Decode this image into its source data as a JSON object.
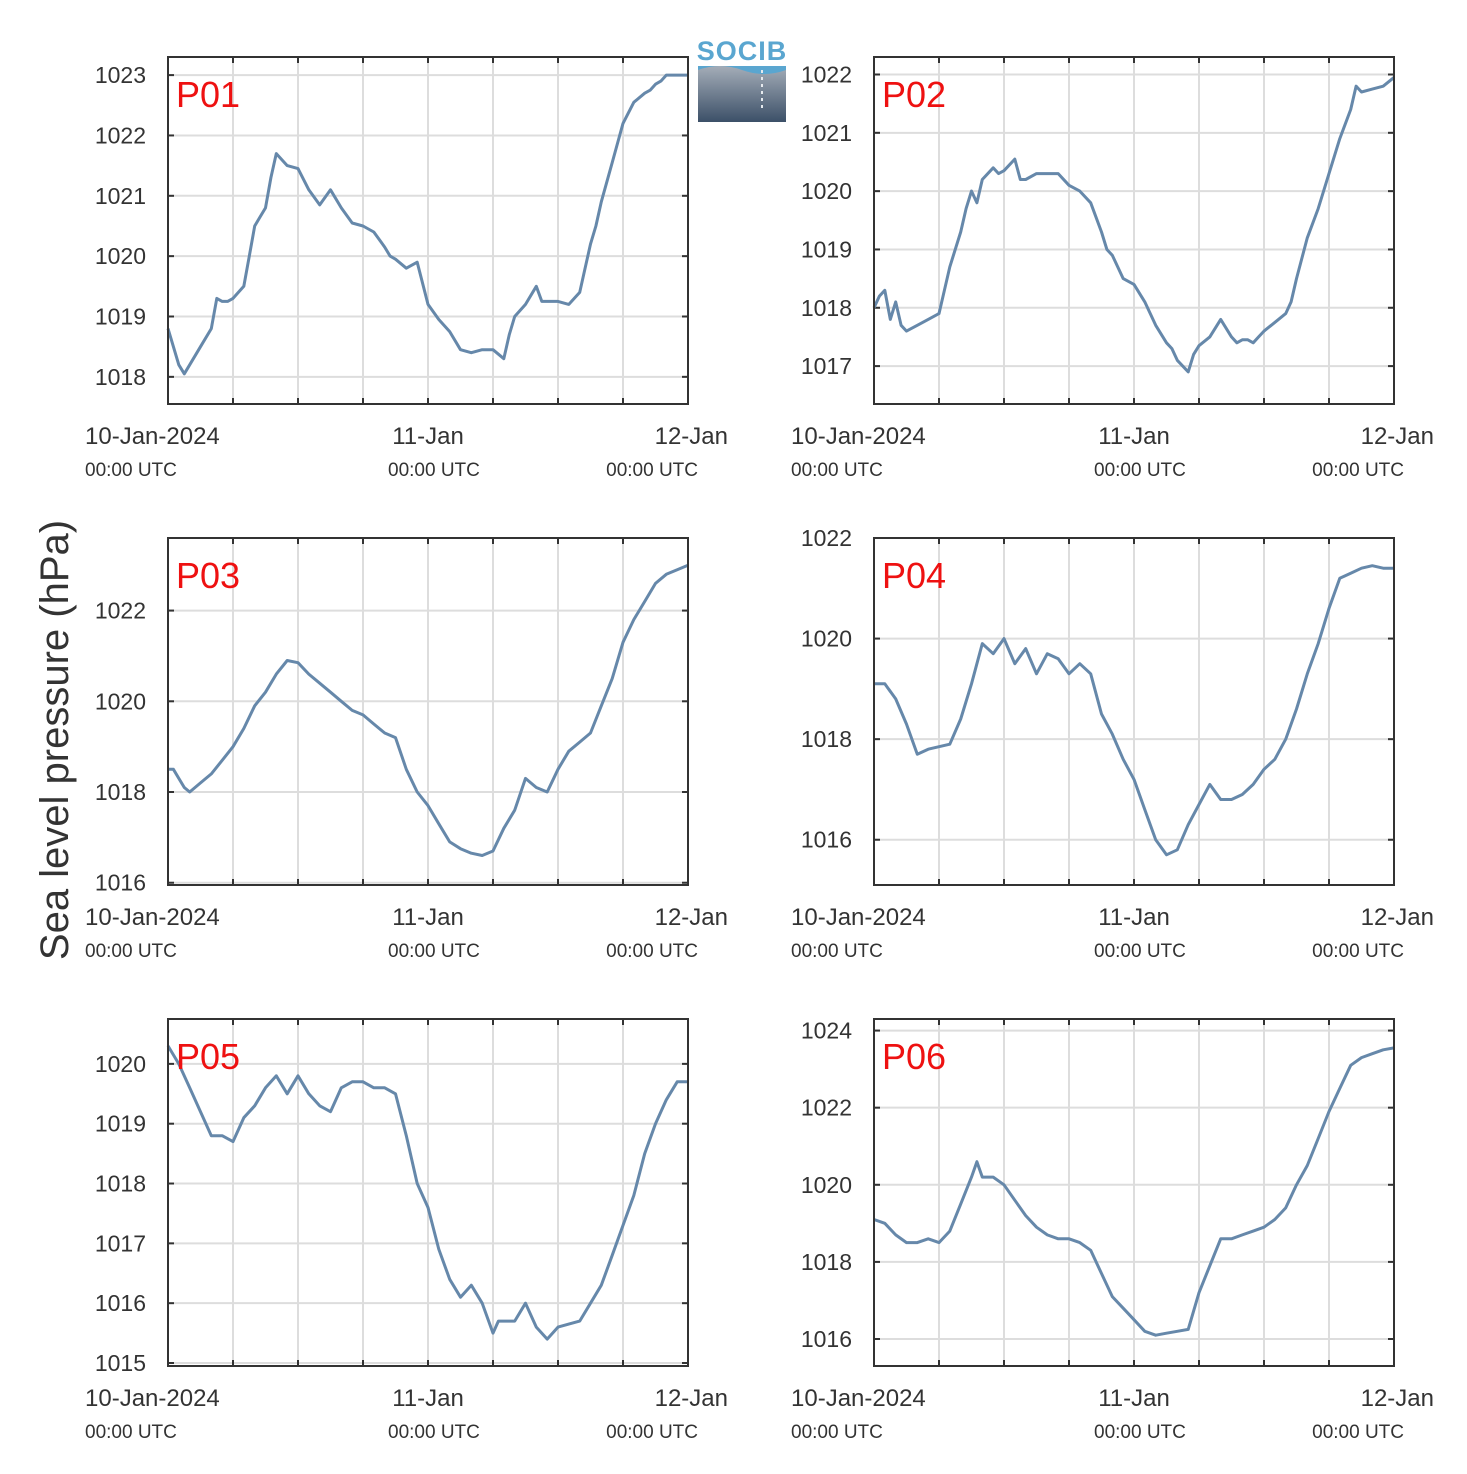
{
  "figure": {
    "ylabel": "Sea level pressure (hPa)",
    "logo_text": "SOCIB"
  },
  "colors": {
    "line": "#6688aa",
    "panel_label": "#ee1111",
    "grid": "#dddddd",
    "axis": "#333333",
    "text": "#333333"
  },
  "chart_data": [
    {
      "type": "line",
      "title": "P01",
      "x_unit": "hours since 10-Jan-2024 00:00 UTC",
      "x_ticks": [
        0,
        24,
        48
      ],
      "x_tick_labels": [
        [
          "10-Jan-2024",
          "00:00 UTC"
        ],
        [
          "11-Jan",
          "00:00 UTC"
        ],
        [
          "12-Jan",
          "00:00 UTC"
        ]
      ],
      "xlim": [
        0,
        48
      ],
      "ylim": [
        1017.55,
        1023.3
      ],
      "y_ticks": [
        1018,
        1019,
        1020,
        1021,
        1022,
        1023
      ],
      "y_tick_labels": [
        "1018",
        "1019",
        "1020",
        "1021",
        "1022",
        "1023"
      ],
      "grid": true,
      "series": [
        {
          "x": [
            0,
            0.5,
            1,
            1.5,
            2,
            3,
            4,
            4.5,
            5,
            5.5,
            6,
            7,
            7.5,
            8,
            8.5,
            9,
            9.5,
            10,
            11,
            12,
            13,
            14,
            15,
            16,
            17,
            18,
            19,
            20,
            20.5,
            21,
            22,
            23,
            24,
            25,
            26,
            27,
            28,
            29,
            29.5,
            30,
            31,
            31.5,
            32,
            33,
            34,
            34.5,
            35,
            35.5,
            36,
            37,
            38,
            38.5,
            39,
            39.5,
            40,
            41,
            42,
            43,
            44,
            44.5,
            45,
            45.5,
            46,
            47,
            48
          ],
          "y": [
            1018.8,
            1018.5,
            1018.2,
            1018.05,
            1018.2,
            1018.5,
            1018.8,
            1019.3,
            1019.25,
            1019.25,
            1019.3,
            1019.5,
            1020.0,
            1020.5,
            1020.65,
            1020.8,
            1021.3,
            1021.7,
            1021.5,
            1021.45,
            1021.1,
            1020.85,
            1021.1,
            1020.8,
            1020.55,
            1020.5,
            1020.4,
            1020.15,
            1020.0,
            1019.95,
            1019.8,
            1019.9,
            1019.2,
            1018.95,
            1018.75,
            1018.45,
            1018.4,
            1018.45,
            1018.45,
            1018.45,
            1018.3,
            1018.7,
            1019.0,
            1019.2,
            1019.5,
            1019.25,
            1019.25,
            1019.25,
            1019.25,
            1019.2,
            1019.4,
            1019.8,
            1020.2,
            1020.5,
            1020.9,
            1021.55,
            1022.2,
            1022.55,
            1022.7,
            1022.75,
            1022.85,
            1022.9,
            1023.0,
            1023.0,
            1023.0
          ]
        }
      ]
    },
    {
      "type": "line",
      "title": "P02",
      "x_unit": "hours since 10-Jan-2024 00:00 UTC",
      "x_ticks": [
        0,
        24,
        48
      ],
      "x_tick_labels": [
        [
          "10-Jan-2024",
          "00:00 UTC"
        ],
        [
          "11-Jan",
          "00:00 UTC"
        ],
        [
          "12-Jan",
          "00:00 UTC"
        ]
      ],
      "xlim": [
        0,
        48
      ],
      "ylim": [
        1016.35,
        1022.3
      ],
      "y_ticks": [
        1017,
        1018,
        1019,
        1020,
        1021,
        1022
      ],
      "y_tick_labels": [
        "1017",
        "1018",
        "1019",
        "1020",
        "1021",
        "1022"
      ],
      "grid": true,
      "series": [
        {
          "x": [
            0,
            0.5,
            1,
            1.5,
            2,
            2.5,
            3,
            4,
            5,
            6,
            6.5,
            7,
            8,
            8.5,
            9,
            9.5,
            10,
            11,
            11.5,
            12,
            13,
            13.5,
            14,
            15,
            15.5,
            16,
            17,
            18,
            18.5,
            19,
            20,
            21,
            21.5,
            22,
            23,
            24,
            25,
            26,
            27,
            27.5,
            28,
            29,
            29.5,
            30,
            31,
            32,
            33,
            33.5,
            34,
            34.5,
            35,
            35.5,
            36,
            37,
            38,
            38.5,
            39,
            40,
            41,
            42,
            43,
            44,
            44.5,
            45,
            46,
            47,
            48
          ],
          "y": [
            1018.0,
            1018.2,
            1018.3,
            1017.8,
            1018.1,
            1017.7,
            1017.6,
            1017.7,
            1017.8,
            1017.9,
            1018.3,
            1018.7,
            1019.3,
            1019.7,
            1020.0,
            1019.8,
            1020.2,
            1020.4,
            1020.3,
            1020.35,
            1020.55,
            1020.2,
            1020.2,
            1020.3,
            1020.3,
            1020.3,
            1020.3,
            1020.1,
            1020.05,
            1020.0,
            1019.8,
            1019.3,
            1019.0,
            1018.9,
            1018.5,
            1018.4,
            1018.1,
            1017.7,
            1017.4,
            1017.3,
            1017.1,
            1016.9,
            1017.2,
            1017.35,
            1017.5,
            1017.8,
            1017.5,
            1017.4,
            1017.45,
            1017.45,
            1017.4,
            1017.5,
            1017.6,
            1017.75,
            1017.9,
            1018.1,
            1018.5,
            1019.2,
            1019.7,
            1020.3,
            1020.9,
            1021.4,
            1021.8,
            1021.7,
            1021.75,
            1021.8,
            1021.95
          ]
        }
      ]
    },
    {
      "type": "line",
      "title": "P03",
      "x_unit": "hours since 10-Jan-2024 00:00 UTC",
      "x_ticks": [
        0,
        24,
        48
      ],
      "x_tick_labels": [
        [
          "10-Jan-2024",
          "00:00 UTC"
        ],
        [
          "11-Jan",
          "00:00 UTC"
        ],
        [
          "12-Jan",
          "00:00 UTC"
        ]
      ],
      "xlim": [
        0,
        48
      ],
      "ylim": [
        1015.95,
        1023.6
      ],
      "y_ticks": [
        1016,
        1018,
        1020,
        1022
      ],
      "y_tick_labels": [
        "1016",
        "1018",
        "1020",
        "1022"
      ],
      "grid": true,
      "series": [
        {
          "x": [
            0,
            0.5,
            1,
            1.5,
            2,
            3,
            4,
            5,
            6,
            7,
            8,
            9,
            10,
            11,
            12,
            13,
            14,
            15,
            16,
            17,
            18,
            19,
            20,
            21,
            22,
            23,
            24,
            25,
            26,
            27,
            28,
            29,
            30,
            31,
            32,
            33,
            34,
            35,
            36,
            37,
            38,
            39,
            40,
            41,
            42,
            43,
            44,
            45,
            46,
            47,
            48
          ],
          "y": [
            1018.5,
            1018.5,
            1018.3,
            1018.1,
            1018.0,
            1018.2,
            1018.4,
            1018.7,
            1019.0,
            1019.4,
            1019.9,
            1020.2,
            1020.6,
            1020.9,
            1020.85,
            1020.6,
            1020.4,
            1020.2,
            1020.0,
            1019.8,
            1019.7,
            1019.5,
            1019.3,
            1019.2,
            1018.5,
            1018.0,
            1017.7,
            1017.3,
            1016.9,
            1016.75,
            1016.65,
            1016.6,
            1016.7,
            1017.2,
            1017.6,
            1018.3,
            1018.1,
            1018.0,
            1018.5,
            1018.9,
            1019.1,
            1019.3,
            1019.9,
            1020.5,
            1021.3,
            1021.8,
            1022.2,
            1022.6,
            1022.8,
            1022.9,
            1023.0
          ]
        }
      ]
    },
    {
      "type": "line",
      "title": "P04",
      "x_unit": "hours since 10-Jan-2024 00:00 UTC",
      "x_ticks": [
        0,
        24,
        48
      ],
      "x_tick_labels": [
        [
          "10-Jan-2024",
          "00:00 UTC"
        ],
        [
          "11-Jan",
          "00:00 UTC"
        ],
        [
          "12-Jan",
          "00:00 UTC"
        ]
      ],
      "xlim": [
        0,
        48
      ],
      "ylim": [
        1015.1,
        1022.0
      ],
      "y_ticks": [
        1016,
        1018,
        1020,
        1022
      ],
      "y_tick_labels": [
        "1016",
        "1018",
        "1020",
        "1022"
      ],
      "grid": true,
      "series": [
        {
          "x": [
            0,
            1,
            2,
            3,
            4,
            5,
            6,
            7,
            8,
            9,
            10,
            11,
            12,
            13,
            14,
            15,
            16,
            17,
            18,
            19,
            20,
            21,
            22,
            23,
            24,
            25,
            26,
            27,
            28,
            29,
            30,
            31,
            32,
            33,
            34,
            35,
            36,
            37,
            38,
            39,
            40,
            41,
            42,
            43,
            44,
            45,
            46,
            47,
            48
          ],
          "y": [
            1019.1,
            1019.1,
            1018.8,
            1018.3,
            1017.7,
            1017.8,
            1017.85,
            1017.9,
            1018.4,
            1019.1,
            1019.9,
            1019.7,
            1020.0,
            1019.5,
            1019.8,
            1019.3,
            1019.7,
            1019.6,
            1019.3,
            1019.5,
            1019.3,
            1018.5,
            1018.1,
            1017.6,
            1017.2,
            1016.6,
            1016.0,
            1015.7,
            1015.8,
            1016.3,
            1016.7,
            1017.1,
            1016.8,
            1016.8,
            1016.9,
            1017.1,
            1017.4,
            1017.6,
            1018.0,
            1018.6,
            1019.3,
            1019.9,
            1020.6,
            1021.2,
            1021.3,
            1021.4,
            1021.45,
            1021.4,
            1021.4
          ]
        }
      ]
    },
    {
      "type": "line",
      "title": "P05",
      "x_unit": "hours since 10-Jan-2024 00:00 UTC",
      "x_ticks": [
        0,
        24,
        48
      ],
      "x_tick_labels": [
        [
          "10-Jan-2024",
          "00:00 UTC"
        ],
        [
          "11-Jan",
          "00:00 UTC"
        ],
        [
          "12-Jan",
          "00:00 UTC"
        ]
      ],
      "xlim": [
        0,
        48
      ],
      "ylim": [
        1014.95,
        1020.75
      ],
      "y_ticks": [
        1015,
        1016,
        1017,
        1018,
        1019,
        1020
      ],
      "y_tick_labels": [
        "1015",
        "1016",
        "1017",
        "1018",
        "1019",
        "1020"
      ],
      "grid": true,
      "series": [
        {
          "x": [
            0,
            1,
            2,
            3,
            4,
            5,
            6,
            7,
            8,
            9,
            10,
            11,
            12,
            13,
            14,
            15,
            16,
            17,
            18,
            19,
            20,
            21,
            22,
            23,
            24,
            25,
            26,
            27,
            28,
            29,
            30,
            30.5,
            31,
            32,
            33,
            34,
            35,
            36,
            37,
            38,
            39,
            40,
            41,
            42,
            43,
            44,
            45,
            46,
            47,
            48
          ],
          "y": [
            1020.3,
            1020.0,
            1019.6,
            1019.2,
            1018.8,
            1018.8,
            1018.7,
            1019.1,
            1019.3,
            1019.6,
            1019.8,
            1019.5,
            1019.8,
            1019.5,
            1019.3,
            1019.2,
            1019.6,
            1019.7,
            1019.7,
            1019.6,
            1019.6,
            1019.5,
            1018.8,
            1018.0,
            1017.6,
            1016.9,
            1016.4,
            1016.1,
            1016.3,
            1016.0,
            1015.5,
            1015.7,
            1015.7,
            1015.7,
            1016.0,
            1015.6,
            1015.4,
            1015.6,
            1015.65,
            1015.7,
            1016.0,
            1016.3,
            1016.8,
            1017.3,
            1017.8,
            1018.5,
            1019.0,
            1019.4,
            1019.7,
            1019.7
          ]
        }
      ]
    },
    {
      "type": "line",
      "title": "P06",
      "x_unit": "hours since 10-Jan-2024 00:00 UTC",
      "x_ticks": [
        0,
        24,
        48
      ],
      "x_tick_labels": [
        [
          "10-Jan-2024",
          "00:00 UTC"
        ],
        [
          "11-Jan",
          "00:00 UTC"
        ],
        [
          "12-Jan",
          "00:00 UTC"
        ]
      ],
      "xlim": [
        0,
        48
      ],
      "ylim": [
        1015.3,
        1024.3
      ],
      "y_ticks": [
        1016,
        1018,
        1020,
        1022,
        1024
      ],
      "y_tick_labels": [
        "1016",
        "1018",
        "1020",
        "1022",
        "1024"
      ],
      "grid": true,
      "series": [
        {
          "x": [
            0,
            1,
            2,
            3,
            4,
            5,
            6,
            7,
            8,
            9,
            9.5,
            10,
            11,
            12,
            13,
            14,
            15,
            16,
            17,
            18,
            19,
            20,
            21,
            22,
            23,
            24,
            25,
            26,
            27,
            28,
            29,
            30,
            31,
            32,
            33,
            34,
            35,
            36,
            37,
            38,
            39,
            40,
            41,
            42,
            43,
            44,
            45,
            46,
            47,
            48
          ],
          "y": [
            1019.1,
            1019.0,
            1018.7,
            1018.5,
            1018.5,
            1018.6,
            1018.5,
            1018.8,
            1019.5,
            1020.2,
            1020.6,
            1020.2,
            1020.2,
            1020.0,
            1019.6,
            1019.2,
            1018.9,
            1018.7,
            1018.6,
            1018.6,
            1018.5,
            1018.3,
            1017.7,
            1017.1,
            1016.8,
            1016.5,
            1016.2,
            1016.1,
            1016.15,
            1016.2,
            1016.25,
            1017.2,
            1017.9,
            1018.6,
            1018.6,
            1018.7,
            1018.8,
            1018.9,
            1019.1,
            1019.4,
            1020.0,
            1020.5,
            1021.2,
            1021.9,
            1022.5,
            1023.1,
            1023.3,
            1023.4,
            1023.5,
            1023.55
          ]
        }
      ]
    }
  ]
}
